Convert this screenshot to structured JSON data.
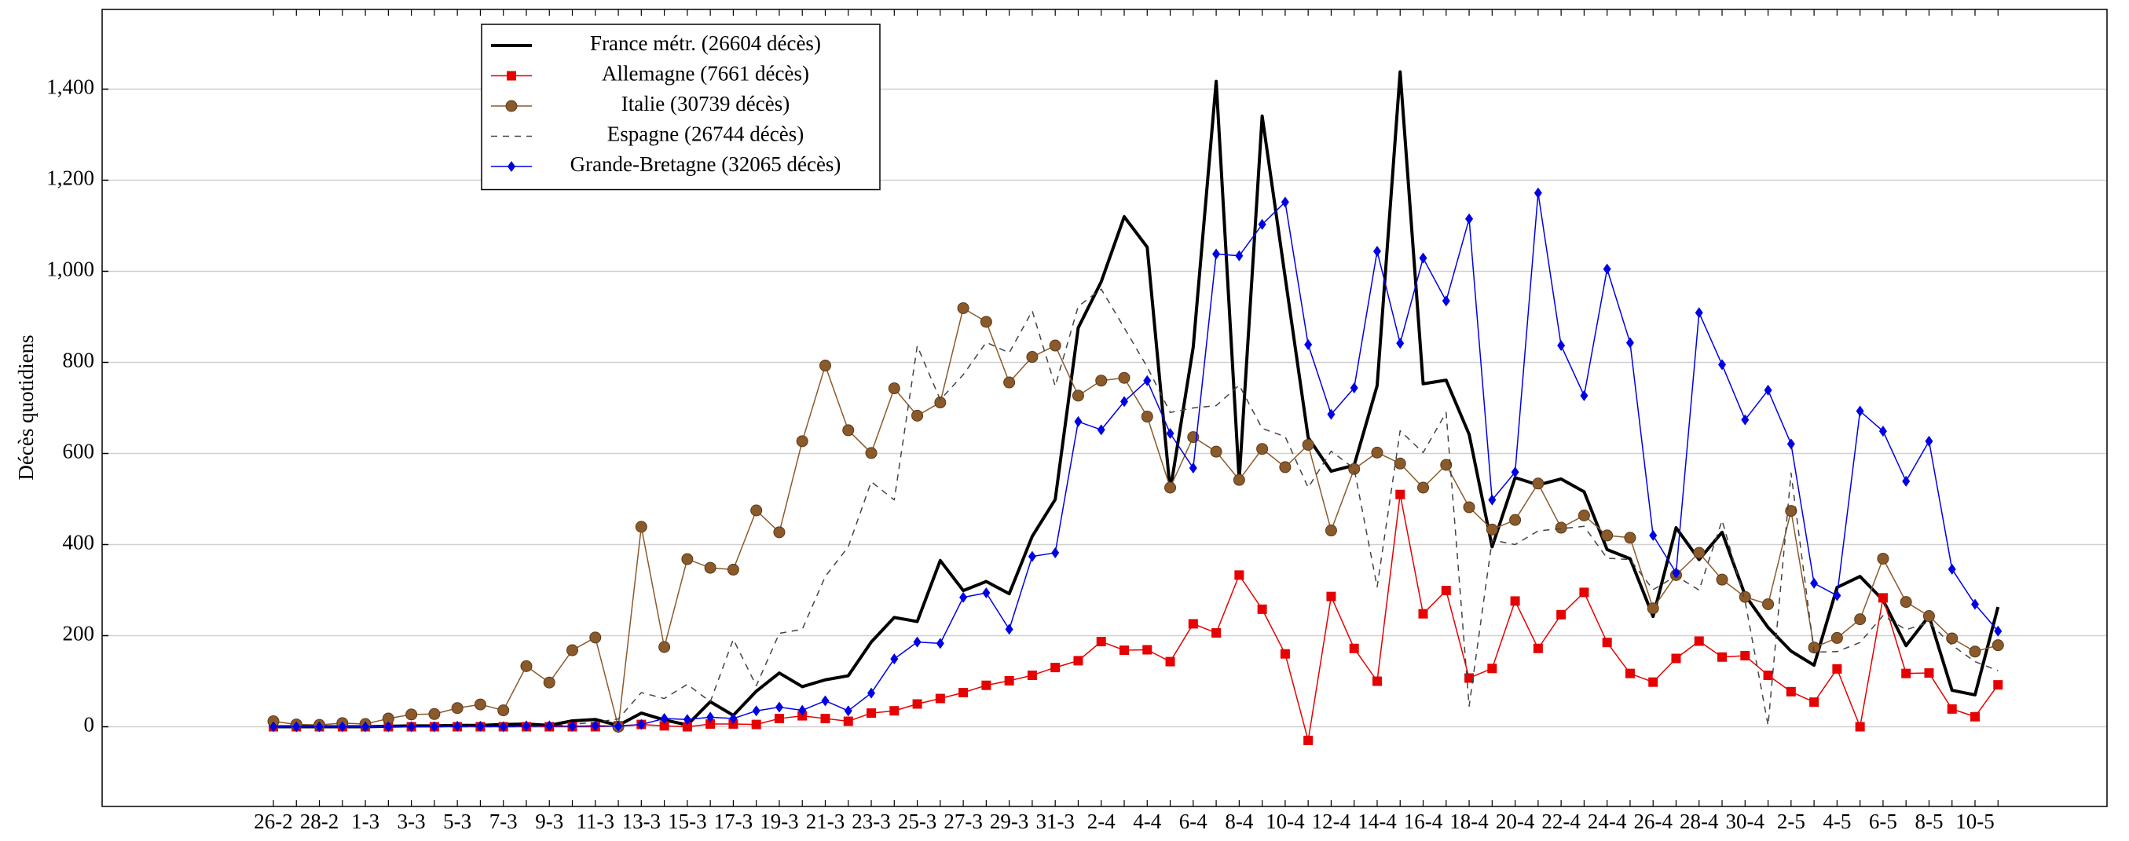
{
  "chart_data": {
    "type": "line",
    "y_label": "Décès quotidiens",
    "categories": [
      "26-2",
      null,
      "28-2",
      null,
      "1-3",
      null,
      "3-3",
      null,
      "5-3",
      null,
      "7-3",
      null,
      "9-3",
      null,
      "11-3",
      null,
      "13-3",
      null,
      "15-3",
      null,
      "17-3",
      null,
      "19-3",
      null,
      "21-3",
      null,
      "23-3",
      null,
      "25-3",
      null,
      "27-3",
      null,
      "29-3",
      null,
      "31-3",
      null,
      "2-4",
      null,
      "4-4",
      null,
      "6-4",
      null,
      "8-4",
      null,
      "10-4",
      null,
      "12-4",
      null,
      "14-4",
      null,
      "16-4",
      null,
      "18-4",
      null,
      "20-4",
      null,
      "22-4",
      null,
      "24-4",
      null,
      "26-4",
      null,
      "28-4",
      null,
      "30-4",
      null,
      "2-5",
      null,
      "4-5",
      null,
      "6-5",
      null,
      "8-5",
      null,
      "10-5",
      null
    ],
    "ylim": [
      -175,
      1575
    ],
    "yticks": [
      0,
      200,
      400,
      600,
      800,
      {
        "value": 1000,
        "label": "1,000"
      },
      {
        "value": 1200,
        "label": "1,200"
      },
      {
        "value": 1400,
        "label": "1,400"
      }
    ],
    "grid": true,
    "legend": "upper left",
    "series": [
      {
        "name": "France métr. (26604 décès)",
        "color": "#000000",
        "line_width": 4,
        "dashed": false,
        "marker": "none",
        "values": [
          0,
          0,
          0,
          0,
          0,
          1,
          2,
          2,
          3,
          3,
          5,
          6,
          3,
          13,
          16,
          3,
          30,
          15,
          4,
          55,
          25,
          78,
          118,
          88,
          103,
          112,
          186,
          240,
          231,
          365,
          299,
          319,
          292,
          418,
          499,
          876,
          977,
          1120,
          1053,
          518,
          833,
          1417,
          541,
          1341,
          987,
          635,
          561,
          574,
          749,
          1438,
          753,
          761,
          642,
          395,
          547,
          531,
          544,
          516,
          389,
          369,
          242,
          437,
          367,
          427,
          289,
          218,
          166,
          135,
          306,
          330,
          278,
          178,
          243,
          80,
          70,
          263
        ]
      },
      {
        "name": "Allemagne (7661 décès)",
        "color": "#e60000",
        "line_width": 1.5,
        "dashed": false,
        "marker": "square",
        "values": [
          0,
          0,
          0,
          0,
          0,
          0,
          0,
          0,
          0,
          0,
          0,
          0,
          0,
          0,
          0,
          2,
          5,
          2,
          0,
          6,
          6,
          5,
          18,
          24,
          18,
          12,
          30,
          35,
          50,
          62,
          75,
          91,
          101,
          113,
          130,
          145,
          187,
          168,
          169,
          143,
          226,
          206,
          333,
          258,
          160,
          -30,
          286,
          172,
          100,
          510,
          248,
          299,
          107,
          128,
          276,
          172,
          246,
          295,
          185,
          117,
          98,
          150,
          188,
          153,
          156,
          113,
          77,
          54,
          127,
          0,
          283,
          117,
          118,
          39,
          22,
          92
        ]
      },
      {
        "name": "Italie (30739 décès)",
        "color": "#8b5a2b",
        "line_width": 1.5,
        "dashed": false,
        "marker": "circle",
        "values": [
          12,
          5,
          4,
          8,
          6,
          18,
          27,
          28,
          41,
          49,
          36,
          133,
          97,
          168,
          196,
          0,
          439,
          175,
          368,
          349,
          345,
          475,
          427,
          627,
          793,
          651,
          601,
          743,
          683,
          712,
          919,
          889,
          756,
          812,
          837,
          727,
          760,
          766,
          681,
          525,
          636,
          604,
          542,
          610,
          570,
          619,
          431,
          566,
          602,
          578,
          525,
          575,
          482,
          433,
          454,
          534,
          437,
          464,
          420,
          415,
          260,
          333,
          382,
          323,
          285,
          269,
          474,
          174,
          195,
          236,
          369,
          274,
          243,
          194,
          165,
          179
        ]
      },
      {
        "name": "Espagne (26744 décès)",
        "color": "#444444",
        "line_width": 1.5,
        "dashed": true,
        "marker": "none",
        "values": [
          0,
          0,
          0,
          0,
          0,
          0,
          0,
          0,
          0,
          0,
          0,
          0,
          1,
          5,
          10,
          17,
          75,
          62,
          93,
          55,
          192,
          90,
          205,
          214,
          330,
          395,
          538,
          498,
          836,
          718,
          773,
          844,
          821,
          913,
          748,
          923,
          961,
          876,
          790,
          690,
          700,
          705,
          750,
          655,
          637,
          525,
          605,
          567,
          307,
          650,
          602,
          690,
          45,
          410,
          400,
          430,
          435,
          440,
          370,
          367,
          301,
          331,
          300,
          453,
          276,
          3,
          557,
          164,
          165,
          185,
          244,
          213,
          229,
          179,
          143,
          123
        ]
      },
      {
        "name": "Grande-Bretagne (32065 décès)",
        "color": "#0000e6",
        "line_width": 1.5,
        "dashed": false,
        "marker": "diamond",
        "values": [
          0,
          0,
          0,
          0,
          0,
          0,
          0,
          0,
          1,
          1,
          0,
          2,
          2,
          1,
          2,
          1,
          5,
          18,
          16,
          21,
          18,
          35,
          43,
          36,
          57,
          35,
          74,
          149,
          186,
          183,
          284,
          294,
          214,
          374,
          382,
          670,
          652,
          714,
          760,
          644,
          568,
          1038,
          1034,
          1103,
          1152,
          839,
          686,
          744,
          1044,
          842,
          1029,
          935,
          1115,
          498,
          559,
          1172,
          837,
          727,
          1005,
          843,
          420,
          338,
          909,
          795,
          674,
          739,
          621,
          315,
          288,
          693,
          649,
          539,
          627,
          346,
          269,
          210
        ]
      }
    ]
  }
}
